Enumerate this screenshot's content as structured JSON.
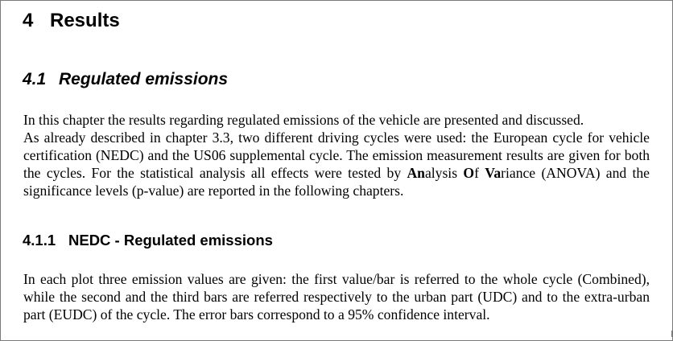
{
  "heading1": {
    "number": "4",
    "title": "Results"
  },
  "heading2": {
    "number": "4.1",
    "title": "Regulated emissions"
  },
  "intro": {
    "line1": "In this chapter the results regarding regulated emissions of the vehicle are presented and discussed.",
    "para_start": "As already described in chapter 3.3, two different driving cycles were used: the European cycle for vehicle certification (NEDC) and the US06 supplemental cycle. The emission measurement results are given for both the cycles. For the statistical analysis all effects were tested by ",
    "an_bold": "An",
    "an_rest": "alysis ",
    "of_bold": "O",
    "of_rest": "f ",
    "va_bold": "Va",
    "va_rest": "riance",
    "para_end": " (ANOVA) and the significance levels (p-value) are reported in the following chapters."
  },
  "heading3": {
    "number": "4.1.1",
    "title": "NEDC - Regulated emissions"
  },
  "plot_description": "In each plot three emission values are given: the first value/bar is referred to the whole cycle (Combined), while the second and the third bars are referred respectively to the urban part (UDC) and to the extra-urban part (EUDC) of the cycle. The error bars correspond to a 95% confidence interval."
}
